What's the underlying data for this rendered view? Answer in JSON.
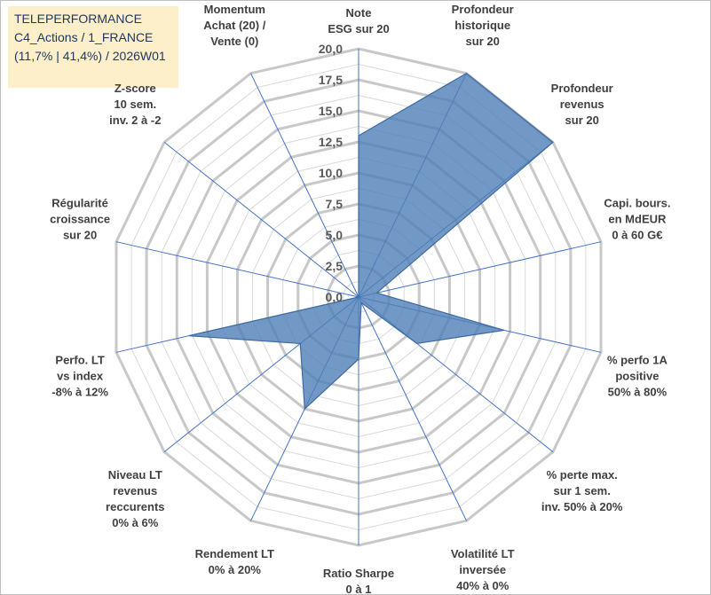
{
  "header": {
    "lines": [
      "TELEPERFORMANCE",
      "C4_Actions / 1_FRANCE",
      "(11,7% | 41,4%) / 2026W01"
    ]
  },
  "colors": {
    "area_fill": "#4f7fb8",
    "spokes": "#4472c4",
    "grid": "#c8c8c8",
    "title_background": "#fcefc9",
    "title_text": "#1f3864"
  },
  "chart_data": {
    "type": "radar",
    "rmin": 0,
    "rmax": 20,
    "ticks": [
      "0,0",
      "2,5",
      "5,0",
      "7,5",
      "10,0",
      "12,5",
      "15,0",
      "17,5",
      "20,0"
    ],
    "grid": true,
    "legend": "none",
    "categories": [
      [
        "Note",
        "ESG sur 20"
      ],
      [
        "Profondeur",
        "historique",
        "sur 20"
      ],
      [
        "Profondeur",
        "revenus",
        "sur 20"
      ],
      [
        "Capi. bours.",
        "en MdEUR",
        "0 à 60 G€"
      ],
      [
        "% perfo 1A",
        "positive",
        "50% à 80%"
      ],
      [
        "% perte max.",
        "sur 1 sem.",
        "inv. 50% à 20%"
      ],
      [
        "Volatilité LT",
        "inversée",
        "40% à 0%"
      ],
      [
        "Ratio Sharpe",
        "0 à 1"
      ],
      [
        "Rendement LT",
        "0% à 20%"
      ],
      [
        "Niveau LT",
        "revenus",
        "reccurents",
        "0% à 6%"
      ],
      [
        "Perfo. LT",
        "vs index",
        "-8% à 12%"
      ],
      [
        "Régularité",
        "croissance",
        "sur 20"
      ],
      [
        "Z-score",
        "10 sem.",
        "inv. 2 à -2"
      ],
      [
        "Momentum",
        "Achat (20) /",
        "Vente (0)"
      ]
    ],
    "series": [
      {
        "values": [
          13,
          20,
          20,
          1.5,
          12,
          6,
          0.5,
          5,
          10,
          6,
          14,
          0,
          0,
          0
        ]
      }
    ]
  }
}
